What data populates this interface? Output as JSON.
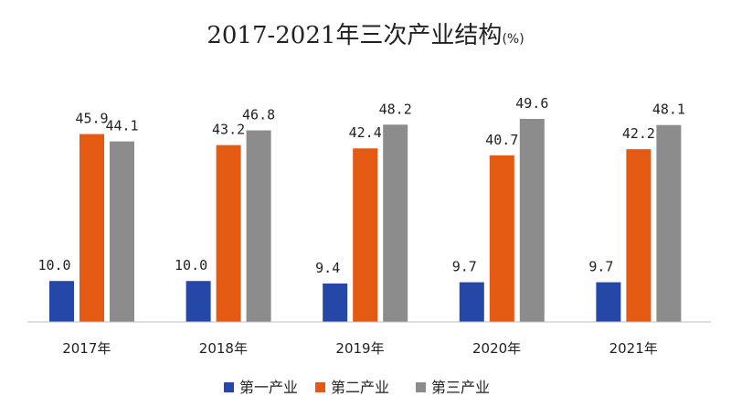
{
  "chart_data": {
    "type": "bar",
    "title": "2017-2021年三次产业结构",
    "title_unit": "(%)",
    "categories": [
      "2017年",
      "2018年",
      "2019年",
      "2020年",
      "2021年"
    ],
    "series": [
      {
        "name": "第一产业",
        "color": "#2447a8",
        "values": [
          10.0,
          10.0,
          9.4,
          9.7,
          9.7
        ],
        "labels": [
          "10.0",
          "10.0",
          "9.4",
          "9.7",
          "9.7"
        ]
      },
      {
        "name": "第二产业",
        "color": "#e55a12",
        "values": [
          45.9,
          43.2,
          42.4,
          40.7,
          42.2
        ],
        "labels": [
          "45.9",
          "43.2",
          "42.4",
          "40.7",
          "42.2"
        ]
      },
      {
        "name": "第三产业",
        "color": "#8c8c8c",
        "values": [
          44.1,
          46.8,
          48.2,
          49.6,
          48.1
        ],
        "labels": [
          "44.1",
          "46.8",
          "48.2",
          "49.6",
          "48.1"
        ]
      }
    ],
    "ylim": [
      0,
      50
    ],
    "grid": false,
    "legend_position": "bottom",
    "xlabel": "",
    "ylabel": ""
  }
}
